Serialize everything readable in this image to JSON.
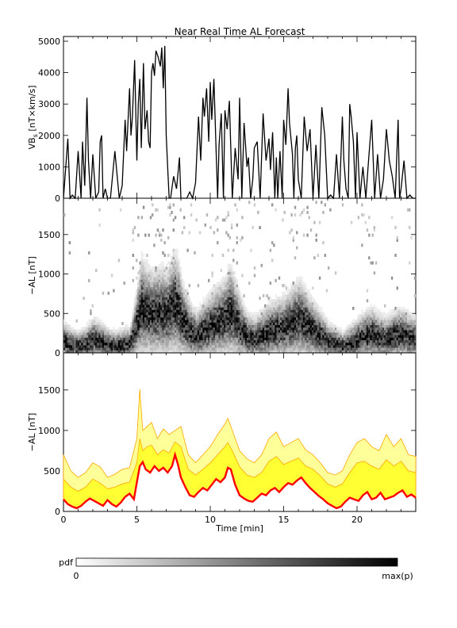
{
  "title": "Near Real Time AL Forecast",
  "colors": {
    "median_line": "#ff0000",
    "band_inner": "#ffff33",
    "band_outer": "#ffff99",
    "band_edge": "#ffa500"
  },
  "chart_data": [
    {
      "type": "line",
      "ylabel": "VB",
      "ylabel_sub": "s",
      "ylabel_unit": " [nT×km/s]",
      "xlim": [
        0,
        24
      ],
      "ylim": [
        0,
        5000
      ],
      "yticks": [
        0,
        1000,
        2000,
        3000,
        4000,
        5000
      ],
      "series": [
        {
          "x": [
            0,
            0.3,
            0.45,
            0.6,
            0.8,
            1.0,
            1.2,
            1.3,
            1.45,
            1.6,
            1.7,
            1.85,
            2.0,
            2.2,
            2.4,
            2.5,
            2.6,
            2.7,
            2.85,
            3.0,
            3.2,
            3.5,
            3.8,
            4.0,
            4.2,
            4.3,
            4.5,
            4.6,
            4.7,
            4.85,
            5.0,
            5.1,
            5.2,
            5.3,
            5.45,
            5.55,
            5.7,
            5.8,
            5.9,
            6.0,
            6.1,
            6.2,
            6.3,
            6.45,
            6.6,
            6.7,
            6.8,
            6.9,
            7.0,
            7.1,
            7.2,
            7.3,
            7.5,
            7.7,
            7.9,
            8.0,
            8.2,
            8.4,
            8.6,
            8.8,
            9.0,
            9.2,
            9.35,
            9.5,
            9.6,
            9.75,
            9.9,
            10.0,
            10.1,
            10.25,
            10.4,
            10.5,
            10.6,
            10.75,
            10.9,
            11.0,
            11.15,
            11.3,
            11.5,
            11.7,
            11.9,
            12.0,
            12.15,
            12.3,
            12.5,
            12.6,
            12.75,
            12.9,
            13.0,
            13.2,
            13.4,
            13.6,
            13.8,
            14.0,
            14.1,
            14.25,
            14.4,
            14.5,
            14.6,
            14.75,
            14.9,
            15.0,
            15.15,
            15.3,
            15.4,
            15.6,
            15.7,
            15.8,
            15.9,
            16.0,
            16.2,
            16.4,
            16.6,
            16.8,
            17.0,
            17.2,
            17.4,
            17.6,
            17.8,
            18.0,
            18.2,
            18.4,
            18.6,
            18.8,
            19.0,
            19.1,
            19.25,
            19.4,
            19.5,
            19.6,
            19.75,
            19.9,
            20.0,
            20.2,
            20.4,
            20.6,
            20.8,
            21.0,
            21.2,
            21.4,
            21.6,
            21.8,
            22.0,
            22.2,
            22.4,
            22.6,
            22.8,
            22.9,
            23.0,
            23.2,
            23.4,
            23.6,
            23.8,
            24.0
          ],
          "y": [
            0,
            1900,
            0,
            100,
            0,
            1500,
            0,
            1800,
            400,
            3200,
            1200,
            0,
            1400,
            0,
            200,
            1800,
            2000,
            0,
            300,
            0,
            0,
            1500,
            0,
            400,
            2500,
            1500,
            3500,
            2000,
            2600,
            4400,
            1200,
            3000,
            3800,
            1600,
            4300,
            2200,
            2800,
            1800,
            1600,
            4000,
            4300,
            3900,
            4700,
            4500,
            4200,
            4800,
            3500,
            4850,
            2000,
            1000,
            0,
            0,
            700,
            300,
            1300,
            0,
            0,
            0,
            200,
            0,
            500,
            2600,
            1200,
            3200,
            2600,
            3500,
            1800,
            3700,
            2500,
            3800,
            1500,
            0,
            1700,
            2700,
            0,
            2800,
            2200,
            3100,
            0,
            1600,
            600,
            3200,
            0,
            2400,
            1000,
            1300,
            0,
            600,
            1600,
            1800,
            0,
            2700,
            1200,
            1900,
            900,
            2100,
            0,
            1300,
            0,
            1500,
            0,
            2500,
            1700,
            3500,
            2400,
            1400,
            0,
            1600,
            2000,
            600,
            0,
            2600,
            1500,
            2200,
            0,
            1700,
            0,
            2900,
            2000,
            0,
            100,
            0,
            1400,
            0,
            2600,
            1200,
            300,
            0,
            3000,
            2600,
            1800,
            0,
            2100,
            0,
            1000,
            0,
            1300,
            2500,
            0,
            1400,
            0,
            600,
            2200,
            1200,
            700,
            0,
            2500,
            0,
            300,
            1200,
            0,
            100,
            0,
            0
          ]
        }
      ]
    },
    {
      "type": "heatmap",
      "ylabel": "−AL [nT]",
      "xlim": [
        0,
        24
      ],
      "ylim": [
        0,
        1900
      ],
      "yticks": [
        0,
        500,
        1000,
        1500
      ],
      "median": {
        "x": [
          0,
          0.5,
          1.0,
          1.5,
          2.0,
          2.5,
          3.0,
          3.5,
          4.0,
          4.5,
          5.0,
          5.25,
          5.5,
          6.0,
          6.5,
          7.0,
          7.5,
          7.75,
          8.0,
          8.5,
          9.0,
          9.5,
          10.0,
          10.5,
          11.0,
          11.25,
          11.5,
          12.0,
          12.5,
          13.0,
          13.5,
          14.0,
          14.5,
          15.0,
          15.5,
          16.0,
          16.5,
          17.0,
          17.5,
          18.0,
          18.5,
          19.0,
          19.5,
          20.0,
          20.5,
          21.0,
          21.5,
          22.0,
          22.5,
          23.0,
          23.5,
          24.0
        ],
        "y": [
          120,
          80,
          60,
          90,
          150,
          120,
          80,
          60,
          80,
          90,
          380,
          560,
          520,
          470,
          500,
          480,
          610,
          560,
          420,
          280,
          200,
          260,
          320,
          380,
          420,
          510,
          470,
          300,
          180,
          160,
          200,
          260,
          280,
          300,
          360,
          420,
          340,
          260,
          200,
          120,
          90,
          60,
          100,
          150,
          200,
          220,
          180,
          160,
          200,
          220,
          180,
          160
        ]
      }
    },
    {
      "type": "area",
      "ylabel": "−AL [nT]",
      "xlabel": "Time [min]",
      "xlim": [
        0,
        24
      ],
      "ylim": [
        0,
        1900
      ],
      "yticks": [
        0,
        500,
        1000,
        1500
      ],
      "xticks": [
        0,
        5,
        10,
        15,
        20
      ],
      "series": [
        {
          "role": "upper_outer",
          "x": [
            0,
            0.5,
            1.0,
            1.5,
            2.0,
            2.5,
            3.0,
            3.5,
            4.0,
            4.5,
            5.0,
            5.2,
            5.4,
            5.7,
            6.0,
            6.4,
            6.8,
            7.2,
            7.6,
            8.0,
            8.5,
            9.0,
            9.5,
            10.0,
            10.5,
            11.0,
            11.2,
            11.5,
            12.0,
            12.5,
            13.0,
            13.5,
            14.0,
            14.5,
            15.0,
            15.5,
            16.0,
            16.5,
            17.0,
            17.5,
            18.0,
            18.5,
            19.0,
            19.5,
            20.0,
            20.5,
            21.0,
            21.5,
            22.0,
            22.5,
            23.0,
            23.5,
            24.0
          ],
          "y": [
            700,
            500,
            420,
            480,
            600,
            550,
            420,
            460,
            520,
            540,
            900,
            1510,
            1000,
            1050,
            1100,
            900,
            1020,
            950,
            1000,
            1050,
            700,
            600,
            700,
            800,
            950,
            1080,
            1150,
            1000,
            750,
            650,
            600,
            700,
            900,
            980,
            800,
            850,
            900,
            760,
            700,
            600,
            480,
            450,
            500,
            700,
            850,
            900,
            800,
            750,
            950,
            800,
            900,
            700,
            680
          ]
        },
        {
          "role": "upper_inner",
          "x": [
            0,
            0.5,
            1.0,
            1.5,
            2.0,
            2.5,
            3.0,
            3.5,
            4.0,
            4.5,
            5.0,
            5.2,
            5.4,
            5.7,
            6.0,
            6.4,
            6.8,
            7.2,
            7.6,
            8.0,
            8.5,
            9.0,
            9.5,
            10.0,
            10.5,
            11.0,
            11.2,
            11.5,
            12.0,
            12.5,
            13.0,
            13.5,
            14.0,
            14.5,
            15.0,
            15.5,
            16.0,
            16.5,
            17.0,
            17.5,
            18.0,
            18.5,
            19.0,
            19.5,
            20.0,
            20.5,
            21.0,
            21.5,
            22.0,
            22.5,
            23.0,
            23.5,
            24.0
          ],
          "y": [
            400,
            300,
            250,
            300,
            400,
            350,
            280,
            300,
            340,
            360,
            600,
            900,
            750,
            800,
            820,
            700,
            760,
            720,
            860,
            800,
            520,
            450,
            520,
            600,
            700,
            800,
            850,
            750,
            550,
            450,
            420,
            480,
            620,
            680,
            580,
            620,
            660,
            560,
            520,
            440,
            340,
            300,
            340,
            480,
            600,
            620,
            560,
            520,
            640,
            560,
            620,
            500,
            480
          ]
        },
        {
          "role": "median",
          "x": [
            0,
            0.3,
            0.6,
            0.9,
            1.2,
            1.5,
            1.8,
            2.1,
            2.4,
            2.7,
            3.0,
            3.3,
            3.6,
            3.9,
            4.2,
            4.5,
            4.8,
            5.0,
            5.2,
            5.4,
            5.6,
            5.9,
            6.2,
            6.5,
            6.8,
            7.1,
            7.4,
            7.6,
            7.8,
            8.0,
            8.3,
            8.6,
            8.9,
            9.2,
            9.5,
            9.8,
            10.1,
            10.4,
            10.7,
            11.0,
            11.2,
            11.4,
            11.7,
            12.0,
            12.3,
            12.6,
            12.9,
            13.2,
            13.5,
            13.8,
            14.1,
            14.4,
            14.7,
            15.0,
            15.3,
            15.6,
            15.9,
            16.2,
            16.5,
            16.8,
            17.1,
            17.4,
            17.7,
            18.0,
            18.3,
            18.6,
            18.9,
            19.2,
            19.5,
            19.8,
            20.1,
            20.4,
            20.7,
            21.0,
            21.3,
            21.6,
            21.9,
            22.2,
            22.5,
            22.8,
            23.1,
            23.4,
            23.7,
            24.0
          ],
          "y": [
            150,
            90,
            60,
            40,
            70,
            120,
            160,
            130,
            100,
            70,
            140,
            90,
            60,
            110,
            180,
            220,
            150,
            360,
            560,
            610,
            520,
            480,
            560,
            500,
            540,
            480,
            560,
            700,
            580,
            420,
            300,
            200,
            180,
            240,
            290,
            260,
            330,
            400,
            360,
            420,
            540,
            520,
            330,
            200,
            160,
            130,
            120,
            170,
            220,
            200,
            260,
            290,
            240,
            300,
            350,
            330,
            380,
            420,
            350,
            290,
            240,
            190,
            150,
            100,
            70,
            40,
            60,
            120,
            170,
            150,
            130,
            200,
            240,
            150,
            170,
            230,
            150,
            170,
            190,
            230,
            260,
            180,
            210,
            170
          ]
        }
      ]
    }
  ],
  "colorbar": {
    "label": "pdf",
    "min_label": "0",
    "max_label": "max(p)"
  }
}
